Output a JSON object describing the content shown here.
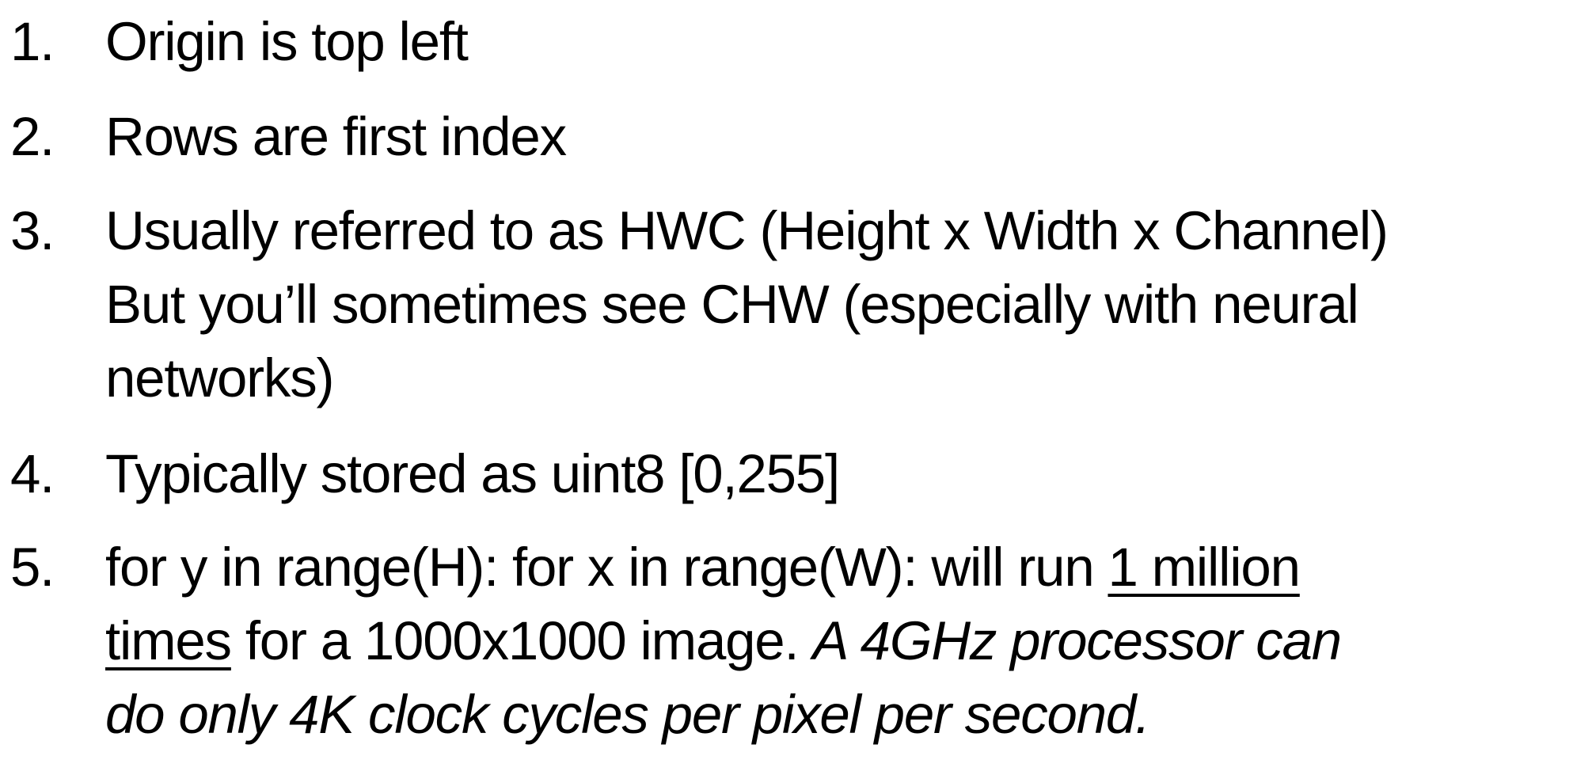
{
  "list": {
    "items": [
      {
        "number": "1.",
        "lines": [
          "Origin is top left"
        ]
      },
      {
        "number": "2.",
        "lines": [
          "Rows are first index"
        ]
      },
      {
        "number": "3.",
        "lines": [
          "Usually referred to as HWC (Height x Width x Channel)",
          "But you’ll sometimes see CHW (especially with neural",
          "networks)"
        ]
      },
      {
        "number": "4.",
        "lines": [
          "Typically stored as uint8 [0,255]"
        ]
      },
      {
        "number": "5.",
        "line1_pre": "for y in range(H): for x in range(W): will run ",
        "line1_underlined": "1 million",
        "line2_underlined": "times",
        "line2_plain": " for a 1000x1000 image. ",
        "line2_italic": "A 4GHz processor can",
        "line3_italic": "do only 4K clock cycles per pixel per second."
      }
    ]
  }
}
